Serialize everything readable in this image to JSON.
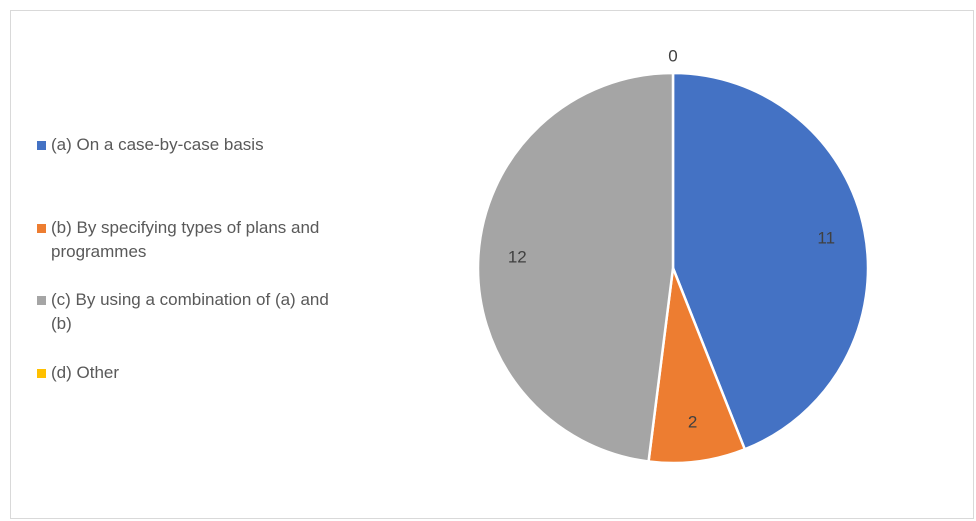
{
  "chart_data": {
    "type": "pie",
    "title": "",
    "categories": [
      "(a) On a case-by-case basis",
      "(b) By specifying types of plans and programmes",
      "(c) By using a combination of (a) and (b)",
      "(d) Other"
    ],
    "values": [
      11,
      2,
      12,
      0
    ],
    "data_labels": [
      "11",
      "2",
      "12",
      "0"
    ],
    "colors": [
      "#4472C4",
      "#ED7D31",
      "#A5A5A5",
      "#FFC000"
    ],
    "legend_position": "left",
    "start_angle_deg": 0,
    "direction": "clockwise"
  }
}
